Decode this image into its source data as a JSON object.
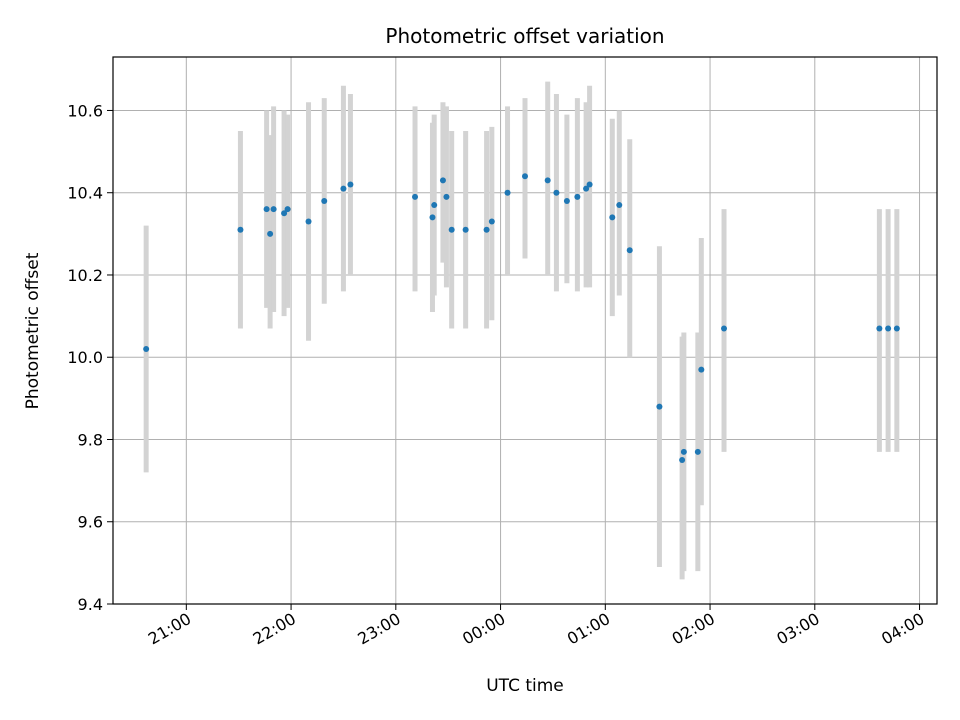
{
  "chart_data": {
    "type": "scatter",
    "title": "Photometric offset variation",
    "xlabel": "UTC time",
    "ylabel": "Photometric offset",
    "grid": true,
    "xlim": [
      "20:18",
      "04:10"
    ],
    "ylim": [
      9.4,
      10.73
    ],
    "x_ticks": [
      "21:00",
      "22:00",
      "23:00",
      "00:00",
      "01:00",
      "02:00",
      "03:00",
      "04:00"
    ],
    "y_ticks": [
      "9.4",
      "9.6",
      "9.8",
      "10.0",
      "10.2",
      "10.4",
      "10.6"
    ],
    "colors": {
      "marker": "#1f77b4",
      "errorbar": "#d3d3d3",
      "grid": "#b0b0b0"
    },
    "points": [
      {
        "time": "20:37",
        "y": 10.02,
        "low": 9.72,
        "high": 10.32
      },
      {
        "time": "21:31",
        "y": 10.31,
        "low": 10.07,
        "high": 10.55
      },
      {
        "time": "21:46",
        "y": 10.36,
        "low": 10.12,
        "high": 10.6
      },
      {
        "time": "21:48",
        "y": 10.3,
        "low": 10.07,
        "high": 10.54
      },
      {
        "time": "21:50",
        "y": 10.36,
        "low": 10.11,
        "high": 10.61
      },
      {
        "time": "21:56",
        "y": 10.35,
        "low": 10.1,
        "high": 10.6
      },
      {
        "time": "21:58",
        "y": 10.36,
        "low": 10.12,
        "high": 10.59
      },
      {
        "time": "22:10",
        "y": 10.33,
        "low": 10.04,
        "high": 10.62
      },
      {
        "time": "22:19",
        "y": 10.38,
        "low": 10.13,
        "high": 10.63
      },
      {
        "time": "22:30",
        "y": 10.41,
        "low": 10.16,
        "high": 10.66
      },
      {
        "time": "22:34",
        "y": 10.42,
        "low": 10.2,
        "high": 10.64
      },
      {
        "time": "23:11",
        "y": 10.39,
        "low": 10.16,
        "high": 10.61
      },
      {
        "time": "23:21",
        "y": 10.34,
        "low": 10.11,
        "high": 10.57
      },
      {
        "time": "23:22",
        "y": 10.37,
        "low": 10.15,
        "high": 10.59
      },
      {
        "time": "23:27",
        "y": 10.43,
        "low": 10.23,
        "high": 10.62
      },
      {
        "time": "23:29",
        "y": 10.39,
        "low": 10.17,
        "high": 10.61
      },
      {
        "time": "23:32",
        "y": 10.31,
        "low": 10.07,
        "high": 10.55
      },
      {
        "time": "23:40",
        "y": 10.31,
        "low": 10.07,
        "high": 10.55
      },
      {
        "time": "23:52",
        "y": 10.31,
        "low": 10.07,
        "high": 10.55
      },
      {
        "time": "23:55",
        "y": 10.33,
        "low": 10.09,
        "high": 10.56
      },
      {
        "time": "00:04",
        "y": 10.4,
        "low": 10.2,
        "high": 10.61
      },
      {
        "time": "00:14",
        "y": 10.44,
        "low": 10.24,
        "high": 10.63
      },
      {
        "time": "00:27",
        "y": 10.43,
        "low": 10.2,
        "high": 10.67
      },
      {
        "time": "00:32",
        "y": 10.4,
        "low": 10.16,
        "high": 10.64
      },
      {
        "time": "00:38",
        "y": 10.38,
        "low": 10.18,
        "high": 10.59
      },
      {
        "time": "00:44",
        "y": 10.39,
        "low": 10.16,
        "high": 10.63
      },
      {
        "time": "00:49",
        "y": 10.41,
        "low": 10.17,
        "high": 10.62
      },
      {
        "time": "00:51",
        "y": 10.42,
        "low": 10.17,
        "high": 10.66
      },
      {
        "time": "01:04",
        "y": 10.34,
        "low": 10.1,
        "high": 10.58
      },
      {
        "time": "01:08",
        "y": 10.37,
        "low": 10.15,
        "high": 10.6
      },
      {
        "time": "01:14",
        "y": 10.26,
        "low": 10.0,
        "high": 10.53
      },
      {
        "time": "01:31",
        "y": 9.88,
        "low": 9.49,
        "high": 10.27
      },
      {
        "time": "01:44",
        "y": 9.75,
        "low": 9.46,
        "high": 10.05
      },
      {
        "time": "01:45",
        "y": 9.77,
        "low": 9.48,
        "high": 10.06
      },
      {
        "time": "01:53",
        "y": 9.77,
        "low": 9.48,
        "high": 10.06
      },
      {
        "time": "01:55",
        "y": 9.97,
        "low": 9.64,
        "high": 10.29
      },
      {
        "time": "02:08",
        "y": 10.07,
        "low": 9.77,
        "high": 10.36
      },
      {
        "time": "03:37",
        "y": 10.07,
        "low": 9.77,
        "high": 10.36
      },
      {
        "time": "03:42",
        "y": 10.07,
        "low": 9.77,
        "high": 10.36
      },
      {
        "time": "03:47",
        "y": 10.07,
        "low": 9.77,
        "high": 10.36
      }
    ]
  }
}
